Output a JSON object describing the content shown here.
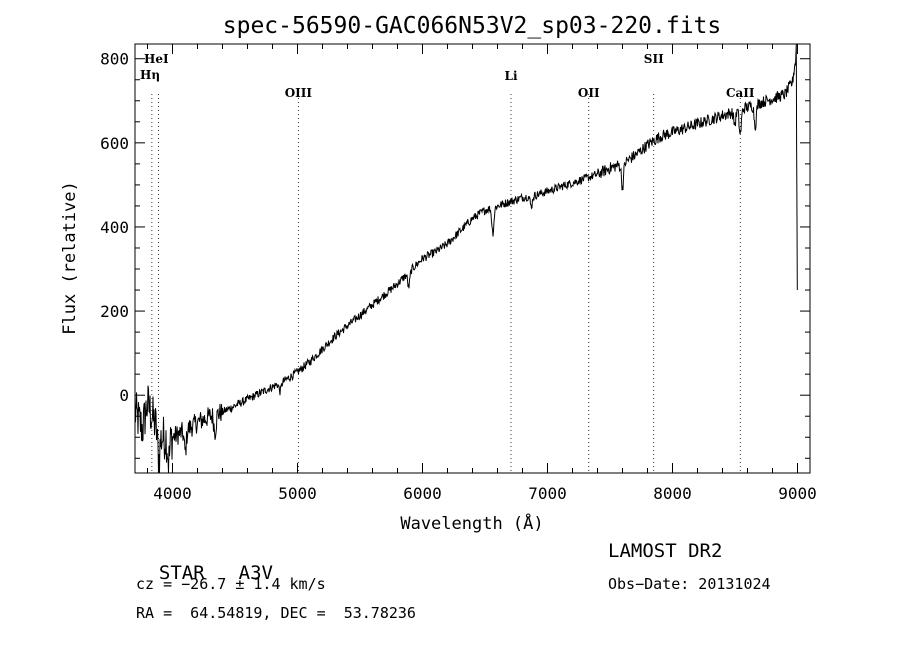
{
  "chart_data": {
    "type": "line",
    "title": "spec-56590-GAC066N53V2_sp03-220.fits",
    "xlabel": "Wavelength (Å)",
    "ylabel": "Flux (relative)",
    "xlim": [
      3700,
      9100
    ],
    "ylim": [
      -185,
      835
    ],
    "x_ticks": [
      4000,
      5000,
      6000,
      7000,
      8000,
      9000
    ],
    "y_ticks": [
      0,
      200,
      400,
      600,
      800
    ],
    "x_minor_step": 200,
    "y_minor_step": 50,
    "grid": false,
    "line_color": "#000000",
    "spectrum_anchors": [
      [
        3700,
        -40
      ],
      [
        3760,
        -80
      ],
      [
        3800,
        -20
      ],
      [
        3850,
        -60
      ],
      [
        3900,
        -100
      ],
      [
        4000,
        -100
      ],
      [
        4100,
        -85
      ],
      [
        4200,
        -65
      ],
      [
        4300,
        -50
      ],
      [
        4400,
        -40
      ],
      [
        4500,
        -25
      ],
      [
        4600,
        -10
      ],
      [
        4700,
        5
      ],
      [
        4800,
        20
      ],
      [
        4900,
        35
      ],
      [
        5000,
        55
      ],
      [
        5100,
        80
      ],
      [
        5200,
        110
      ],
      [
        5300,
        140
      ],
      [
        5400,
        165
      ],
      [
        5500,
        190
      ],
      [
        5600,
        215
      ],
      [
        5700,
        240
      ],
      [
        5800,
        265
      ],
      [
        5900,
        295
      ],
      [
        6000,
        325
      ],
      [
        6100,
        340
      ],
      [
        6200,
        360
      ],
      [
        6300,
        390
      ],
      [
        6400,
        420
      ],
      [
        6500,
        440
      ],
      [
        6600,
        450
      ],
      [
        6700,
        460
      ],
      [
        6800,
        470
      ],
      [
        6900,
        475
      ],
      [
        7000,
        485
      ],
      [
        7100,
        495
      ],
      [
        7200,
        505
      ],
      [
        7300,
        515
      ],
      [
        7400,
        525
      ],
      [
        7500,
        540
      ],
      [
        7600,
        550
      ],
      [
        7700,
        570
      ],
      [
        7800,
        595
      ],
      [
        7900,
        615
      ],
      [
        8000,
        625
      ],
      [
        8100,
        635
      ],
      [
        8200,
        645
      ],
      [
        8300,
        655
      ],
      [
        8400,
        665
      ],
      [
        8500,
        675
      ],
      [
        8600,
        685
      ],
      [
        8700,
        695
      ],
      [
        8800,
        705
      ],
      [
        8900,
        715
      ],
      [
        8960,
        745
      ],
      [
        8980,
        790
      ]
    ],
    "absorption_lines": [
      [
        3889,
        60
      ],
      [
        3970,
        55
      ],
      [
        4102,
        50
      ],
      [
        4340,
        40
      ],
      [
        4861,
        20
      ],
      [
        5890,
        35
      ],
      [
        6563,
        60
      ],
      [
        6870,
        25
      ],
      [
        7600,
        55
      ],
      [
        8498,
        30
      ],
      [
        8542,
        60
      ],
      [
        8662,
        50
      ]
    ],
    "reference_lines": [
      {
        "name": "HeI",
        "wavelength": 3889
      },
      {
        "name": "Hη",
        "wavelength": 3835
      },
      {
        "name": "OIII",
        "wavelength": 5007
      },
      {
        "name": "Li",
        "wavelength": 6708
      },
      {
        "name": "OII",
        "wavelength": 7330
      },
      {
        "name": "SII",
        "wavelength": 7850
      },
      {
        "name": "CaII",
        "wavelength": 8542
      }
    ]
  },
  "info": {
    "class_label": "STAR",
    "subclass": "A3V",
    "survey": "LAMOST DR2",
    "cz": "cz = −26.7 ± 1.4 km/s",
    "obs_date": "Obs−Date: 20131024",
    "radec": "RA =  64.54819, DEC =  53.78236"
  }
}
